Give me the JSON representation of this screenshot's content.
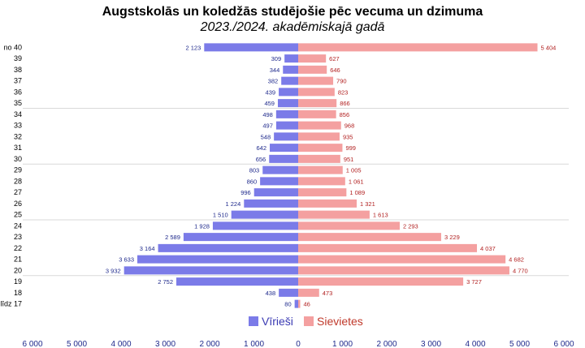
{
  "chart_data": {
    "type": "bar",
    "orientation": "horizontal",
    "title": "Augstskolās un koledžās studējošie pēc vecuma un dzimuma",
    "subtitle": "2023./2024. akadēmiskajā gadā",
    "categories": [
      "no 40",
      "39",
      "38",
      "37",
      "36",
      "35",
      "34",
      "33",
      "32",
      "31",
      "30",
      "29",
      "28",
      "27",
      "26",
      "25",
      "24",
      "23",
      "22",
      "21",
      "20",
      "19",
      "18",
      "līdz 17"
    ],
    "series": [
      {
        "name": "Vīrieši",
        "color": "#7b7be8",
        "label_color": "#1f2a8c",
        "side": "left",
        "values": [
          2123,
          309,
          344,
          382,
          439,
          459,
          498,
          497,
          548,
          642,
          656,
          803,
          860,
          996,
          1224,
          1510,
          1928,
          2589,
          3164,
          3633,
          3932,
          2752,
          438,
          80
        ],
        "labels": [
          "2 123",
          "309",
          "344",
          "382",
          "439",
          "459",
          "498",
          "497",
          "548",
          "642",
          "656",
          "803",
          "860",
          "996",
          "1 224",
          "1 510",
          "1 928",
          "2 589",
          "3 164",
          "3 633",
          "3 932",
          "2 752",
          "438",
          "80"
        ]
      },
      {
        "name": "Sievietes",
        "color": "#f4a0a0",
        "label_color": "#b22222",
        "side": "right",
        "values": [
          5404,
          627,
          646,
          790,
          823,
          866,
          856,
          968,
          935,
          999,
          951,
          1005,
          1061,
          1089,
          1321,
          1613,
          2293,
          3229,
          4037,
          4682,
          4770,
          3727,
          473,
          46
        ],
        "labels": [
          "5 404",
          "627",
          "646",
          "790",
          "823",
          "866",
          "856",
          "968",
          "935",
          "999",
          "951",
          "1 005",
          "1 061",
          "1 089",
          "1 321",
          "1 613",
          "2 293",
          "3 229",
          "4 037",
          "4 682",
          "4 770",
          "3 727",
          "473",
          "46"
        ]
      }
    ],
    "x_ticks": [
      -6000,
      -5000,
      -4000,
      -3000,
      -2000,
      -1000,
      0,
      1000,
      2000,
      3000,
      4000,
      5000,
      6000
    ],
    "x_tick_labels": [
      "6 000",
      "5 000",
      "4 000",
      "3 000",
      "2 000",
      "1 000",
      "0",
      "1 000",
      "2 000",
      "3 000",
      "4 000",
      "5 000",
      "6 000"
    ],
    "xlim": [
      -6000,
      6000
    ],
    "group_separators_after": [
      "35",
      "30",
      "25",
      "20"
    ],
    "legend": {
      "position": "bottom-center",
      "items": [
        "Vīrieši",
        "Sievietes"
      ]
    },
    "grid": false
  }
}
